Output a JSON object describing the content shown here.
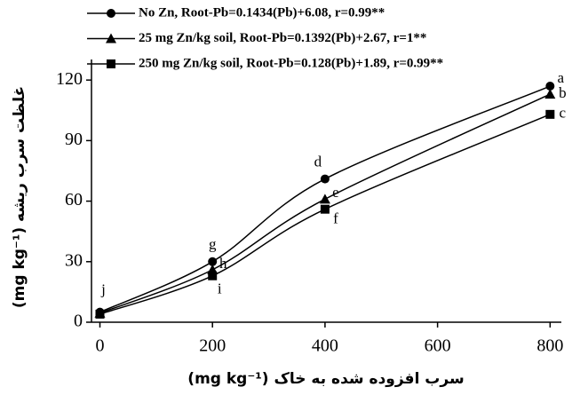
{
  "chart_data": {
    "type": "line",
    "x_label": "سرب افزوده شده به خاک (mg kg⁻¹)",
    "y_label": "غلظت سرب ریشه (mg kg⁻¹)",
    "x": [
      0,
      200,
      400,
      800
    ],
    "series": [
      {
        "name": "No Zn, Root-Pb=0.1434(Pb)+6.08, r=0.99**",
        "color": "#000000",
        "marker": "circle",
        "values": [
          5,
          30,
          71,
          117
        ],
        "point_labels": [
          "j",
          "g",
          "d",
          "a"
        ]
      },
      {
        "name": "25 mg Zn/kg soil, Root-Pb=0.1392(Pb)+2.67, r=1**",
        "color": "#000000",
        "marker": "triangle",
        "values": [
          4.5,
          26,
          61,
          113
        ],
        "point_labels": [
          null,
          "h",
          "e",
          "b"
        ]
      },
      {
        "name": "250 mg Zn/kg soil, Root-Pb=0.128(Pb)+1.89, r=0.99**",
        "color": "#000000",
        "marker": "square",
        "values": [
          4,
          23,
          56,
          103
        ],
        "point_labels": [
          null,
          "i",
          "f",
          "c"
        ]
      }
    ],
    "xlim": [
      -15,
      820
    ],
    "ylim": [
      0,
      128
    ],
    "xticks": [
      0,
      200,
      400,
      600,
      800
    ],
    "yticks": [
      0,
      30,
      60,
      90,
      120
    ],
    "legend": "top-left",
    "grid": false
  }
}
